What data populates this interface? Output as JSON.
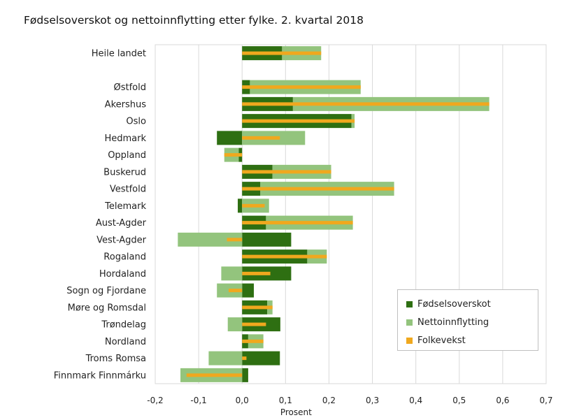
{
  "chart_data": {
    "type": "bar",
    "title": "Fødselsoverskot og nettoinnflytting etter fylke. 2. kvartal 2018",
    "xlabel": "Prosent",
    "ylabel": "",
    "xlim": [
      -0.2,
      0.7
    ],
    "x_ticks": [
      -0.2,
      -0.1,
      0.0,
      0.1,
      0.2,
      0.3,
      0.4,
      0.5,
      0.6,
      0.7
    ],
    "x_tick_labels": [
      "-0,2",
      "-0,1",
      "0,0",
      "0,1",
      "0,2",
      "0,3",
      "0,4",
      "0,5",
      "0,6",
      "0,7"
    ],
    "grid": "vertical",
    "legend_position": "bottom-right",
    "categories": [
      "Heile landet",
      "",
      "Østfold",
      "Akershus",
      "Oslo",
      "Hedmark",
      "Oppland",
      "Buskerud",
      "Vestfold",
      "Telemark",
      "Aust-Agder",
      "Vest-Agder",
      "Rogaland",
      "Hordaland",
      "Sogn og Fjordane",
      "Møre og Romsdal",
      "Trøndelag",
      "Nordland",
      "Troms Romsa",
      "Finnmark Finnmárku"
    ],
    "series": [
      {
        "name": "Fødselsoverskot",
        "color": "#2e6f12",
        "stacked": true,
        "values": [
          0.092,
          null,
          0.018,
          0.117,
          0.252,
          -0.058,
          -0.008,
          0.07,
          0.042,
          -0.01,
          0.055,
          0.113,
          0.15,
          0.113,
          0.027,
          0.058,
          0.088,
          0.014,
          0.087,
          0.014
        ]
      },
      {
        "name": "Nettoinnflytting",
        "color": "#93c47d",
        "stacked": true,
        "values": [
          0.09,
          null,
          0.255,
          0.452,
          0.007,
          0.145,
          -0.033,
          0.135,
          0.308,
          0.062,
          0.2,
          -0.148,
          0.045,
          -0.048,
          -0.058,
          0.012,
          -0.033,
          0.035,
          -0.077,
          -0.142
        ]
      },
      {
        "name": "Folkevekst",
        "color": "#f0a81e",
        "values": [
          0.182,
          null,
          0.273,
          0.569,
          0.259,
          0.087,
          -0.041,
          0.205,
          0.35,
          0.052,
          0.255,
          -0.035,
          0.195,
          0.065,
          -0.031,
          0.07,
          0.055,
          0.049,
          0.01,
          -0.128
        ]
      }
    ]
  }
}
